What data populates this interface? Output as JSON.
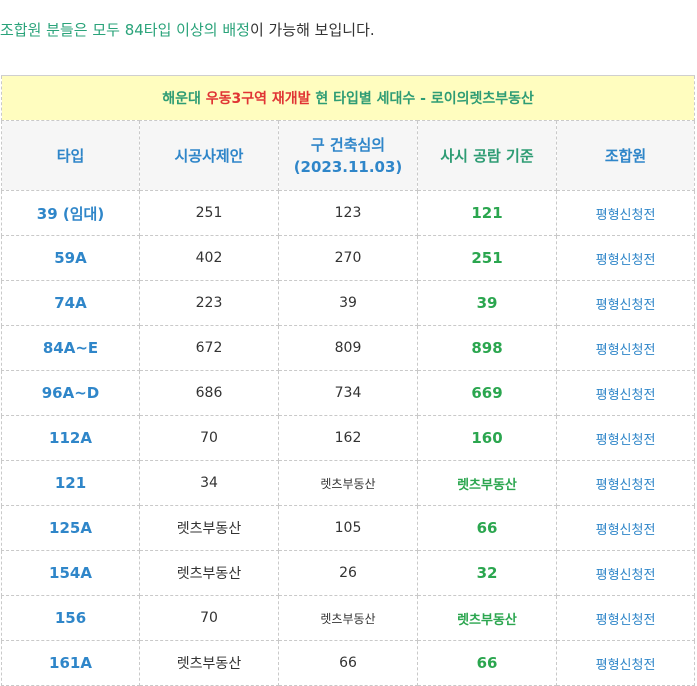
{
  "intro": {
    "highlight": "조합원 분들은 모두 84타입 이상의 배정",
    "rest": "이 가능해 보입니다."
  },
  "table": {
    "title_prefix": "해운대 ",
    "title_red": "우동3구역 재개발",
    "title_suffix": "  현 타입별 세대수  - 로이의렛츠부동산",
    "headers": {
      "type": "타입",
      "proposal": "시공사제안",
      "review_line1": "구 건축심의",
      "review_line2": "(2023.11.03)",
      "city": "사시 공람 기준",
      "member": "조합원"
    },
    "rows": [
      {
        "type": "39 (임대)",
        "proposal": "251",
        "review": "123",
        "city": "121",
        "member": "평형신청전"
      },
      {
        "type": "59A",
        "proposal": "402",
        "review": "270",
        "city": "251",
        "member": "평형신청전"
      },
      {
        "type": "74A",
        "proposal": "223",
        "review": "39",
        "city": "39",
        "member": "평형신청전"
      },
      {
        "type": "84A~E",
        "proposal": "672",
        "review": "809",
        "city": "898",
        "member": "평형신청전"
      },
      {
        "type": "96A~D",
        "proposal": "686",
        "review": "734",
        "city": "669",
        "member": "평형신청전"
      },
      {
        "type": "112A",
        "proposal": "70",
        "review": "162",
        "city": "160",
        "member": "평형신청전"
      },
      {
        "type": "121",
        "proposal": "34",
        "review": "렛츠부동산",
        "city": "렛츠부동산",
        "member": "평형신청전"
      },
      {
        "type": "125A",
        "proposal": "렛츠부동산",
        "review": "105",
        "city": "66",
        "member": "평형신청전"
      },
      {
        "type": "154A",
        "proposal": "렛츠부동산",
        "review": "26",
        "city": "32",
        "member": "평형신청전"
      },
      {
        "type": "156",
        "proposal": "70",
        "review": "렛츠부동산",
        "city": "렛츠부동산",
        "member": "평형신청전"
      },
      {
        "type": "161A",
        "proposal": "렛츠부동산",
        "review": "66",
        "city": "66",
        "member": "평형신청전"
      }
    ]
  }
}
